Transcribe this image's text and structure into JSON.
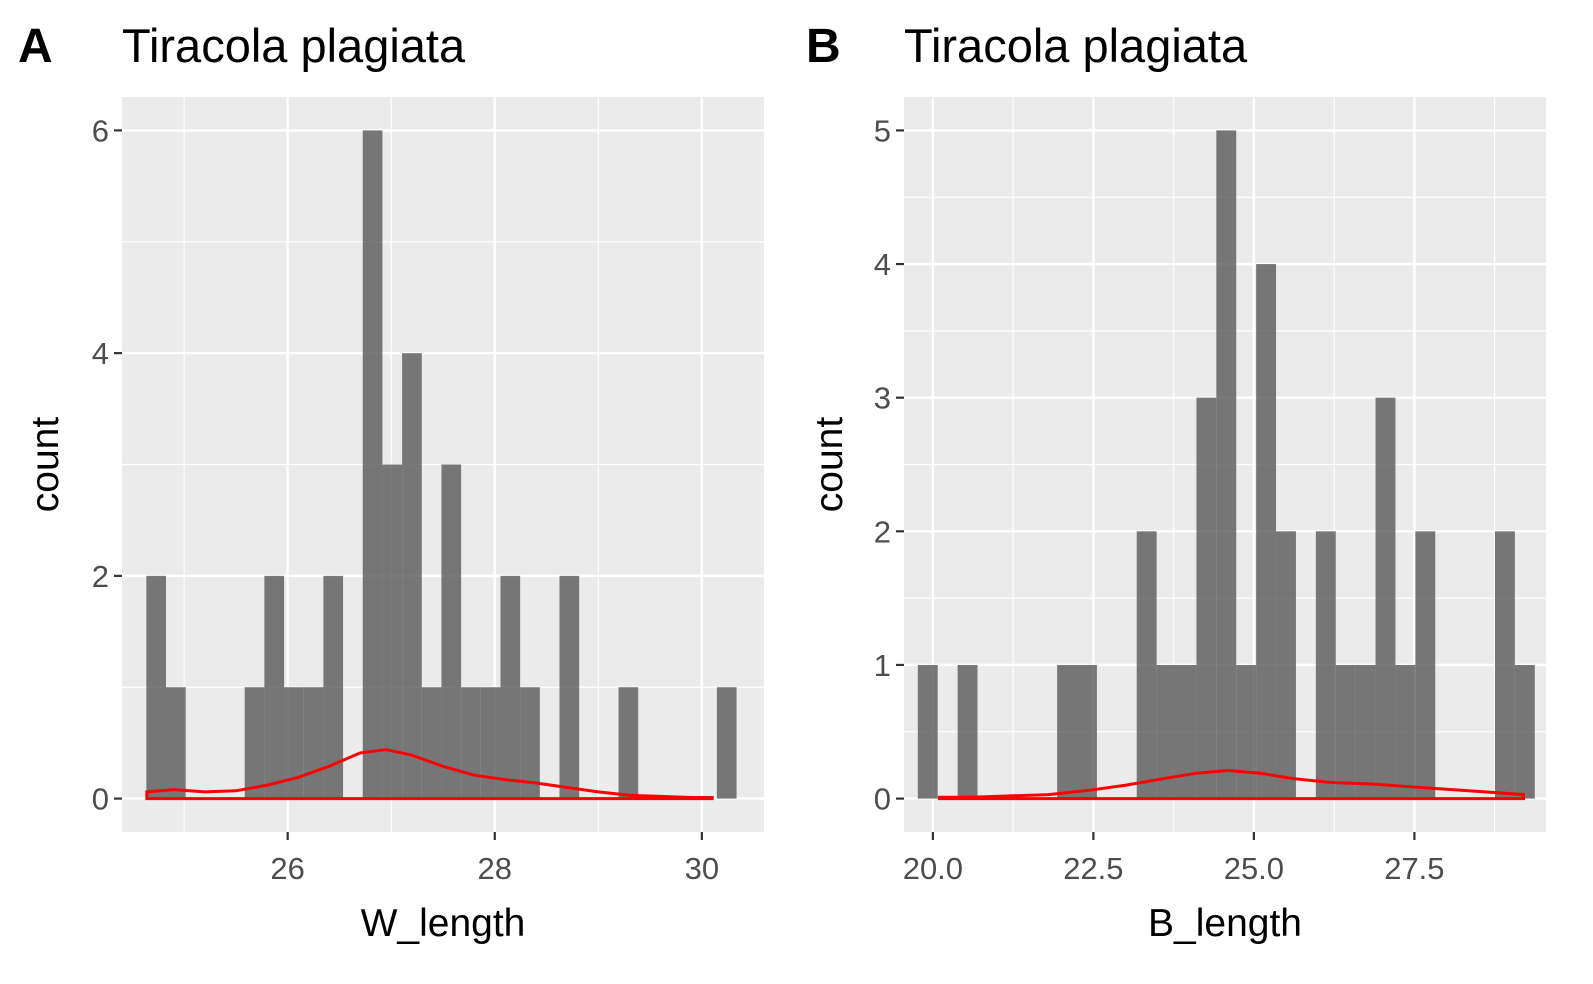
{
  "chart_data": [
    {
      "tag": "A",
      "type": "bar",
      "title": "Tiracola plagiata",
      "xlabel": "W_length",
      "ylabel": "count",
      "xlim": [
        24.4,
        30.6
      ],
      "ylim": [
        -0.3,
        6.3
      ],
      "xbreaks": [
        26,
        28,
        30
      ],
      "xbreak_labels": [
        "26",
        "28",
        "30"
      ],
      "ybreaks": [
        0,
        2,
        4,
        6
      ],
      "ybreak_labels": [
        "0",
        "2",
        "4",
        "6"
      ],
      "xminor": [
        25,
        27,
        29
      ],
      "yminor": [
        1,
        3,
        5
      ],
      "grid": true,
      "bin_width": 0.19,
      "bins": [
        {
          "x": 24.73,
          "count": 2
        },
        {
          "x": 24.92,
          "count": 1
        },
        {
          "x": 25.68,
          "count": 1
        },
        {
          "x": 25.87,
          "count": 2
        },
        {
          "x": 26.06,
          "count": 1
        },
        {
          "x": 26.25,
          "count": 1
        },
        {
          "x": 26.44,
          "count": 2
        },
        {
          "x": 26.82,
          "count": 6
        },
        {
          "x": 27.01,
          "count": 3
        },
        {
          "x": 27.2,
          "count": 4
        },
        {
          "x": 27.39,
          "count": 1
        },
        {
          "x": 27.58,
          "count": 3
        },
        {
          "x": 27.77,
          "count": 1
        },
        {
          "x": 27.96,
          "count": 1
        },
        {
          "x": 28.15,
          "count": 2
        },
        {
          "x": 28.34,
          "count": 1
        },
        {
          "x": 28.72,
          "count": 2
        },
        {
          "x": 29.29,
          "count": 1
        },
        {
          "x": 30.24,
          "count": 1
        }
      ],
      "density_color": "#ff0000",
      "density": {
        "x": [
          24.64,
          24.9,
          25.2,
          25.5,
          25.8,
          26.1,
          26.4,
          26.7,
          26.95,
          27.2,
          27.5,
          27.8,
          28.1,
          28.4,
          28.7,
          29.0,
          29.3,
          29.6,
          29.9,
          30.1
        ],
        "y": [
          0.06,
          0.08,
          0.06,
          0.07,
          0.12,
          0.19,
          0.29,
          0.41,
          0.44,
          0.39,
          0.29,
          0.21,
          0.17,
          0.14,
          0.1,
          0.06,
          0.03,
          0.02,
          0.01,
          0.01
        ]
      }
    },
    {
      "tag": "B",
      "type": "bar",
      "title": "Tiracola plagiata",
      "xlabel": "B_length",
      "ylabel": "count",
      "xlim": [
        19.55,
        29.55
      ],
      "ylim": [
        -0.25,
        5.25
      ],
      "xbreaks": [
        20.0,
        22.5,
        25.0,
        27.5
      ],
      "xbreak_labels": [
        "20.0",
        "22.5",
        "25.0",
        "27.5"
      ],
      "ybreaks": [
        0,
        1,
        2,
        3,
        4,
        5
      ],
      "ybreak_labels": [
        "0",
        "1",
        "2",
        "3",
        "4",
        "5"
      ],
      "xminor": [
        21.25,
        23.75,
        26.25,
        28.75
      ],
      "yminor": [
        0.5,
        1.5,
        2.5,
        3.5,
        4.5
      ],
      "grid": true,
      "bin_width": 0.31,
      "bins": [
        {
          "x": 19.92,
          "count": 1
        },
        {
          "x": 20.54,
          "count": 1
        },
        {
          "x": 22.09,
          "count": 1
        },
        {
          "x": 22.4,
          "count": 1
        },
        {
          "x": 23.33,
          "count": 2
        },
        {
          "x": 23.64,
          "count": 1
        },
        {
          "x": 23.95,
          "count": 1
        },
        {
          "x": 24.26,
          "count": 3
        },
        {
          "x": 24.57,
          "count": 5
        },
        {
          "x": 24.88,
          "count": 1
        },
        {
          "x": 25.19,
          "count": 4
        },
        {
          "x": 25.5,
          "count": 2
        },
        {
          "x": 26.12,
          "count": 2
        },
        {
          "x": 26.43,
          "count": 1
        },
        {
          "x": 26.74,
          "count": 1
        },
        {
          "x": 27.05,
          "count": 3
        },
        {
          "x": 27.36,
          "count": 1
        },
        {
          "x": 27.67,
          "count": 2
        },
        {
          "x": 28.91,
          "count": 2
        },
        {
          "x": 29.22,
          "count": 1
        }
      ],
      "density_color": "#ff0000",
      "density": {
        "x": [
          20.1,
          20.6,
          21.2,
          21.8,
          22.4,
          23.0,
          23.6,
          24.1,
          24.6,
          25.1,
          25.6,
          26.2,
          26.8,
          27.4,
          28.0,
          28.6,
          29.2
        ],
        "y": [
          0.01,
          0.01,
          0.02,
          0.03,
          0.06,
          0.1,
          0.15,
          0.19,
          0.21,
          0.19,
          0.15,
          0.12,
          0.11,
          0.09,
          0.07,
          0.05,
          0.03
        ]
      }
    }
  ]
}
